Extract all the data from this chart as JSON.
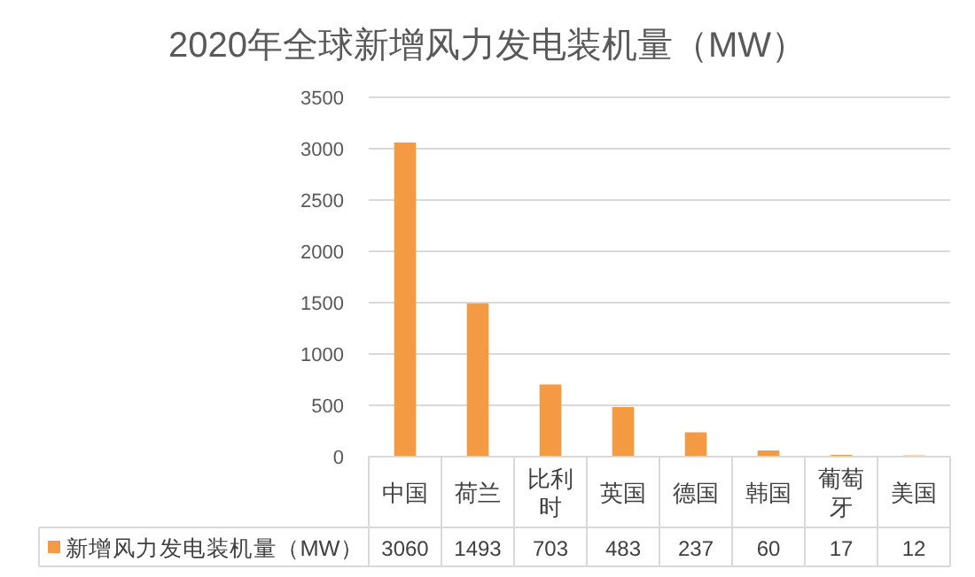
{
  "chart_data": {
    "type": "bar",
    "title": "2020年全球新增风力发电装机量（MW）",
    "categories": [
      "中国",
      "荷兰",
      "比利时",
      "英国",
      "德国",
      "韩国",
      "葡萄牙",
      "美国"
    ],
    "series": [
      {
        "name": "新增风力发电装机量（MW）",
        "color": "#f39a43",
        "values": [
          3060,
          1493,
          703,
          483,
          237,
          60,
          17,
          12
        ]
      }
    ],
    "ylim": [
      0,
      3500
    ],
    "yticks": [
      0,
      500,
      1000,
      1500,
      2000,
      2500,
      3000,
      3500
    ],
    "grid": "y",
    "legend": "bottom",
    "data_labels": true
  }
}
